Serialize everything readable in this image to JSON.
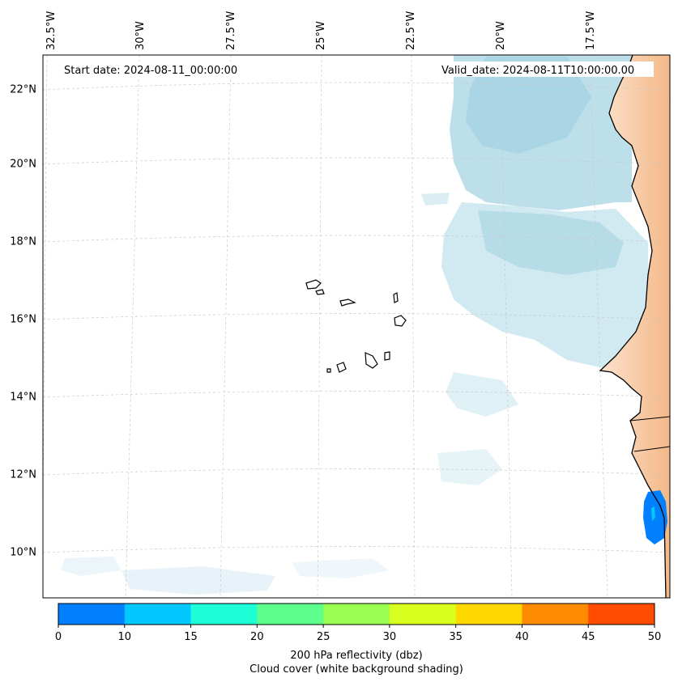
{
  "map": {
    "start_date": "Start date: 2024-08-11_00:00:00",
    "valid_date": "Valid_date: 2024-08-11T10:00:00.00",
    "lon_labels": [
      "32.5°W",
      "30°W",
      "27.5°W",
      "25°W",
      "22.5°W",
      "20°W",
      "17.5°W"
    ],
    "lat_labels": [
      "22°N",
      "20°N",
      "18°N",
      "16°N",
      "14°N",
      "12°N",
      "10°N"
    ]
  },
  "colorbar": {
    "ticks": [
      "0",
      "10",
      "15",
      "20",
      "25",
      "30",
      "35",
      "40",
      "45",
      "50"
    ],
    "colors": [
      "#0080ff",
      "#00c8ff",
      "#1effd8",
      "#5cff8c",
      "#9aff50",
      "#d8ff1e",
      "#ffd800",
      "#ff8c00",
      "#ff4c00"
    ],
    "label_line1": "200 hPa reflectivity (dbz)",
    "label_line2": "Cloud cover (white background shading)"
  }
}
